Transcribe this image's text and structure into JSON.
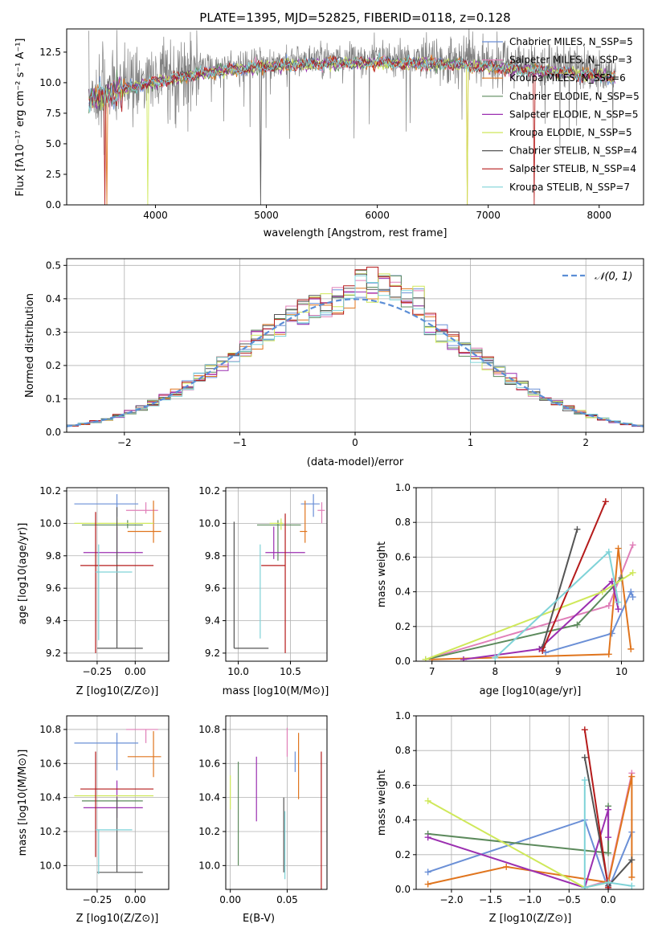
{
  "colors": {
    "chabrier_miles": "#6a8fd6",
    "salpeter_miles": "#e07fb8",
    "kroupa_miles": "#e0751e",
    "chabrier_elodie": "#5c8a5c",
    "salpeter_elodie": "#9b2fb0",
    "kroupa_elodie": "#cfe85a",
    "chabrier_stelib": "#555555",
    "salpeter_stelib": "#b51b1b",
    "kroupa_stelib": "#7fd3d8",
    "spectrum": "#808080",
    "normal_curve": "#5b8ed6",
    "grid": "#b0b0b0"
  },
  "chart_data": [
    {
      "type": "line",
      "title": "PLATE=1395, MJD=52825, FIBERID=0118, z=0.128",
      "xlabel": "wavelength [Angstrom, rest frame]",
      "ylabel": "Flux [fλ10⁻¹⁷ erg cm⁻² s⁻¹ A⁻¹]",
      "xlim": [
        3200,
        8400
      ],
      "ylim": [
        0,
        14.4
      ],
      "xticks": [
        "4000",
        "5000",
        "6000",
        "7000",
        "8000"
      ],
      "yticks": [
        "0.0",
        "2.5",
        "5.0",
        "7.5",
        "10.0",
        "12.5"
      ],
      "grid": false,
      "legend_position": "right",
      "legend": [
        "Chabrier MILES, N_SSP=5",
        "Salpeter MILES, N_SSP=3",
        "Kroupa MILES, N_SSP=6",
        "Chabrier ELODIE, N_SSP=5",
        "Salpeter ELODIE, N_SSP=5",
        "Kroupa ELODIE, N_SSP=5",
        "Chabrier STELIB, N_SSP=4",
        "Salpeter STELIB, N_SSP=4",
        "Kroupa STELIB, N_SSP=7"
      ],
      "spectrum_trend": {
        "x": [
          3400,
          3550,
          3700,
          3900,
          4100,
          4300,
          4500,
          4800,
          5200,
          5600,
          6000,
          6400,
          6800,
          7200,
          7600,
          8000,
          8150
        ],
        "y": [
          8.8,
          9.4,
          9.8,
          10.2,
          10.6,
          10.9,
          11.2,
          11.5,
          11.8,
          11.9,
          12.0,
          11.9,
          11.8,
          11.5,
          11.2,
          10.9,
          10.7
        ]
      }
    },
    {
      "type": "histogram",
      "xlabel": "(data-model)/error",
      "ylabel": "Normed distribution",
      "xlim": [
        -2.5,
        2.5
      ],
      "ylim": [
        0,
        0.52
      ],
      "xticks": [
        "−2",
        "−1",
        "0",
        "1",
        "2"
      ],
      "yticks": [
        "0.0",
        "0.1",
        "0.2",
        "0.3",
        "0.4",
        "0.5"
      ],
      "grid": true,
      "legend_position": "top-right",
      "legend": [
        "𝒩(0, 1)"
      ],
      "bin_width": 0.1
    },
    {
      "type": "scatter",
      "xlabel": "Z [log10(Z/Z⊙)]",
      "ylabel": "age  [log10(age/yr)]",
      "xlim": [
        -0.45,
        0.22
      ],
      "ylim": [
        9.15,
        10.22
      ],
      "xticks": [
        "−0.25",
        "0.00"
      ],
      "yticks": [
        "9.2",
        "9.4",
        "9.6",
        "9.8",
        "10.0",
        "10.2"
      ],
      "points": [
        {
          "model": "chabrier_miles",
          "x": -0.12,
          "y": 10.12,
          "xerr": [
            0.28,
            0.14
          ],
          "yerr": [
            0.08,
            0.06
          ]
        },
        {
          "model": "salpeter_miles",
          "x": 0.07,
          "y": 10.08,
          "xerr": [
            0.13,
            0.08
          ],
          "yerr": [
            0.02,
            0.05
          ]
        },
        {
          "model": "kroupa_miles",
          "x": 0.12,
          "y": 9.95,
          "xerr": [
            0.17,
            0.05
          ],
          "yerr": [
            0.07,
            0.19
          ]
        },
        {
          "model": "chabrier_elodie",
          "x": -0.05,
          "y": 9.99,
          "xerr": [
            0.3,
            0.1
          ],
          "yerr": [
            0.02,
            0.03
          ]
        },
        {
          "model": "salpeter_elodie",
          "x": -0.12,
          "y": 9.82,
          "xerr": [
            0.22,
            0.17
          ],
          "yerr": [
            0.04,
            0.16
          ]
        },
        {
          "model": "kroupa_elodie",
          "x": -0.12,
          "y": 10.0,
          "xerr": [
            0.28,
            0.24
          ],
          "yerr": [
            0.04,
            0.03
          ]
        },
        {
          "model": "chabrier_stelib",
          "x": -0.12,
          "y": 9.23,
          "xerr": [
            0.13,
            0.17
          ],
          "yerr": [
            0.0,
            0.87
          ]
        },
        {
          "model": "salpeter_stelib",
          "x": -0.26,
          "y": 9.74,
          "xerr": [
            0.1,
            0.38
          ],
          "yerr": [
            0.54,
            0.33
          ]
        },
        {
          "model": "kroupa_stelib",
          "x": -0.24,
          "y": 9.7,
          "xerr": [
            0.02,
            0.22
          ],
          "yerr": [
            0.42,
            0.17
          ]
        }
      ]
    },
    {
      "type": "scatter",
      "xlabel": "mass [log10(M/M⊙)]",
      "xlim": [
        9.88,
        10.85
      ],
      "ylim": [
        9.15,
        10.22
      ],
      "xticks": [
        "10.0",
        "10.5"
      ],
      "yticks": [
        "9.2",
        "9.4",
        "9.6",
        "9.8",
        "10.0",
        "10.2"
      ],
      "points": [
        {
          "model": "chabrier_miles",
          "x": 10.72,
          "y": 10.12,
          "xerr": [
            0.12,
            0.06
          ],
          "yerr": [
            0.08,
            0.06
          ]
        },
        {
          "model": "salpeter_miles",
          "x": 10.8,
          "y": 10.08,
          "xerr": [
            0.04,
            0.03
          ],
          "yerr": [
            0.08,
            0.05
          ]
        },
        {
          "model": "kroupa_miles",
          "x": 10.64,
          "y": 9.95,
          "xerr": [
            0.05,
            0.02
          ],
          "yerr": [
            0.07,
            0.19
          ]
        },
        {
          "model": "chabrier_elodie",
          "x": 10.38,
          "y": 9.99,
          "xerr": [
            0.2,
            0.22
          ],
          "yerr": [
            0.22,
            0.03
          ]
        },
        {
          "model": "salpeter_elodie",
          "x": 10.34,
          "y": 9.82,
          "xerr": [
            0.08,
            0.3
          ],
          "yerr": [
            0.04,
            0.16
          ]
        },
        {
          "model": "kroupa_elodie",
          "x": 10.41,
          "y": 10.0,
          "xerr": [
            0.11,
            0.02
          ],
          "yerr": [
            0.04,
            0.03
          ]
        },
        {
          "model": "chabrier_stelib",
          "x": 9.96,
          "y": 9.23,
          "xerr": [
            0.0,
            0.33
          ],
          "yerr": [
            0.0,
            0.78
          ]
        },
        {
          "model": "salpeter_stelib",
          "x": 10.45,
          "y": 9.74,
          "xerr": [
            0.23,
            0.0
          ],
          "yerr": [
            0.54,
            0.32
          ]
        },
        {
          "model": "kroupa_stelib",
          "x": 10.21,
          "y": 9.7,
          "xerr": [
            0.0,
            0.0
          ],
          "yerr": [
            0.41,
            0.17
          ]
        }
      ]
    },
    {
      "type": "line",
      "xlabel": "age  [log10(age/yr)]",
      "ylabel": "mass weight",
      "xlim": [
        6.75,
        10.35
      ],
      "ylim": [
        0,
        1
      ],
      "xticks": [
        "7",
        "8",
        "9",
        "10"
      ],
      "yticks": [
        "0.0",
        "0.2",
        "0.4",
        "0.6",
        "0.8",
        "1.0"
      ],
      "grid": true,
      "series": [
        {
          "model": "chabrier_miles",
          "x": [
            8.8,
            9.85,
            10.15,
            10.18
          ],
          "y": [
            0.05,
            0.16,
            0.4,
            0.37
          ]
        },
        {
          "model": "salpeter_miles",
          "x": [
            6.9,
            9.8,
            10.18
          ],
          "y": [
            0.01,
            0.32,
            0.67
          ]
        },
        {
          "model": "kroupa_miles",
          "x": [
            7.0,
            9.8,
            9.95,
            10.15
          ],
          "y": [
            0.01,
            0.04,
            0.65,
            0.07
          ]
        },
        {
          "model": "chabrier_elodie",
          "x": [
            6.9,
            9.3,
            10.0
          ],
          "y": [
            0.01,
            0.21,
            0.48
          ]
        },
        {
          "model": "salpeter_elodie",
          "x": [
            7.5,
            8.7,
            9.85,
            9.95
          ],
          "y": [
            0.01,
            0.07,
            0.46,
            0.3
          ]
        },
        {
          "model": "kroupa_elodie",
          "x": [
            6.9,
            9.7,
            10.18
          ],
          "y": [
            0.01,
            0.4,
            0.51
          ]
        },
        {
          "model": "chabrier_stelib",
          "x": [
            8.75,
            9.3
          ],
          "y": [
            0.08,
            0.76
          ]
        },
        {
          "model": "salpeter_stelib",
          "x": [
            8.75,
            9.75
          ],
          "y": [
            0.06,
            0.92
          ]
        },
        {
          "model": "kroupa_stelib",
          "x": [
            8.0,
            9.8,
            9.95
          ],
          "y": [
            0.02,
            0.63,
            0.34
          ]
        }
      ]
    },
    {
      "type": "scatter",
      "xlabel": "Z [log10(Z/Z⊙)]",
      "ylabel": "mass [log10(M/M⊙)]",
      "xlim": [
        -0.45,
        0.22
      ],
      "ylim": [
        9.86,
        10.88
      ],
      "xticks": [
        "−0.25",
        "0.00"
      ],
      "yticks": [
        "10.0",
        "10.2",
        "10.4",
        "10.6",
        "10.8"
      ],
      "points": [
        {
          "model": "chabrier_miles",
          "x": -0.12,
          "y": 10.72,
          "xerr": [
            0.28,
            0.14
          ],
          "yerr": [
            0.16,
            0.06
          ]
        },
        {
          "model": "salpeter_miles",
          "x": 0.07,
          "y": 10.8,
          "xerr": [
            0.13,
            0.08
          ],
          "yerr": [
            0.08,
            0.0
          ]
        },
        {
          "model": "kroupa_miles",
          "x": 0.12,
          "y": 10.64,
          "xerr": [
            0.17,
            0.05
          ],
          "yerr": [
            0.12,
            0.15
          ]
        },
        {
          "model": "chabrier_elodie",
          "x": -0.05,
          "y": 10.38,
          "xerr": [
            0.3,
            0.1
          ],
          "yerr": [
            0.0,
            0.0
          ]
        },
        {
          "model": "salpeter_elodie",
          "x": -0.12,
          "y": 10.34,
          "xerr": [
            0.22,
            0.17
          ],
          "yerr": [
            0.06,
            0.16
          ]
        },
        {
          "model": "kroupa_elodie",
          "x": -0.12,
          "y": 10.41,
          "xerr": [
            0.28,
            0.24
          ],
          "yerr": [
            0.0,
            0.0
          ]
        },
        {
          "model": "chabrier_stelib",
          "x": -0.12,
          "y": 9.96,
          "xerr": [
            0.13,
            0.17
          ],
          "yerr": [
            0.0,
            0.44
          ]
        },
        {
          "model": "salpeter_stelib",
          "x": -0.26,
          "y": 10.45,
          "xerr": [
            0.1,
            0.38
          ],
          "yerr": [
            0.4,
            0.22
          ]
        },
        {
          "model": "kroupa_stelib",
          "x": -0.24,
          "y": 10.21,
          "xerr": [
            0.02,
            0.22
          ],
          "yerr": [
            0.26,
            0.0
          ]
        }
      ]
    },
    {
      "type": "scatter",
      "xlabel": "E(B-V)",
      "xlim": [
        -0.004,
        0.085
      ],
      "ylim": [
        9.86,
        10.88
      ],
      "xticks": [
        "0.00",
        "0.05"
      ],
      "yticks": [
        "10.0",
        "10.2",
        "10.4",
        "10.6",
        "10.8"
      ],
      "points": [
        {
          "model": "chabrier_miles",
          "x": 0.057,
          "y": 10.62,
          "yerr": [
            0.07,
            0.05
          ]
        },
        {
          "model": "salpeter_miles",
          "x": 0.05,
          "y": 10.71,
          "yerr": [
            0.07,
            0.1
          ]
        },
        {
          "model": "kroupa_miles",
          "x": 0.06,
          "y": 10.63,
          "yerr": [
            0.24,
            0.15
          ]
        },
        {
          "model": "chabrier_elodie",
          "x": 0.007,
          "y": 10.3,
          "yerr": [
            0.3,
            0.31
          ]
        },
        {
          "model": "salpeter_elodie",
          "x": 0.023,
          "y": 10.45,
          "yerr": [
            0.19,
            0.19
          ]
        },
        {
          "model": "kroupa_elodie",
          "x": 0.0,
          "y": 10.38,
          "yerr": [
            0.05,
            0.15
          ]
        },
        {
          "model": "chabrier_stelib",
          "x": 0.047,
          "y": 10.18,
          "yerr": [
            0.22,
            0.22
          ]
        },
        {
          "model": "salpeter_stelib",
          "x": 0.08,
          "y": 10.25,
          "yerr": [
            0.42,
            0.42
          ]
        },
        {
          "model": "kroupa_stelib",
          "x": 0.048,
          "y": 10.12,
          "yerr": [
            0.2,
            0.2
          ]
        }
      ]
    },
    {
      "type": "line",
      "xlabel": "Z [log10(Z/Z⊙)]",
      "ylabel": "mass weight",
      "xlim": [
        -2.45,
        0.45
      ],
      "ylim": [
        0,
        1
      ],
      "xticks": [
        "−2.0",
        "−1.5",
        "−1.0",
        "−0.5",
        "0.0"
      ],
      "yticks": [
        "0.0",
        "0.2",
        "0.4",
        "0.6",
        "0.8",
        "1.0"
      ],
      "grid": true,
      "series": [
        {
          "model": "chabrier_miles",
          "x": [
            -2.3,
            -0.3,
            0.0,
            0.3
          ],
          "y": [
            0.1,
            0.4,
            0.0,
            0.33
          ]
        },
        {
          "model": "salpeter_miles",
          "x": [
            -0.3,
            0.0,
            0.3
          ],
          "y": [
            0.01,
            0.05,
            0.67
          ]
        },
        {
          "model": "kroupa_miles",
          "x": [
            -2.3,
            -1.3,
            0.0,
            0.3,
            0.3
          ],
          "y": [
            0.03,
            0.13,
            0.04,
            0.65,
            0.07
          ]
        },
        {
          "model": "chabrier_elodie",
          "x": [
            -2.3,
            0.0,
            0.0
          ],
          "y": [
            0.32,
            0.21,
            0.48
          ]
        },
        {
          "model": "salpeter_elodie",
          "x": [
            -2.3,
            -0.3,
            0.0,
            0.0
          ],
          "y": [
            0.3,
            0.01,
            0.46,
            0.3
          ]
        },
        {
          "model": "kroupa_elodie",
          "x": [
            -2.3,
            -0.3,
            0.0
          ],
          "y": [
            0.51,
            0.01,
            0.04
          ]
        },
        {
          "model": "chabrier_stelib",
          "x": [
            -0.3,
            0.0,
            0.3
          ],
          "y": [
            0.76,
            0.02,
            0.17
          ]
        },
        {
          "model": "salpeter_stelib",
          "x": [
            -0.3,
            0.0
          ],
          "y": [
            0.92,
            0.01
          ]
        },
        {
          "model": "kroupa_stelib",
          "x": [
            -0.3,
            -0.3,
            0.0,
            0.3
          ],
          "y": [
            0.63,
            0.01,
            0.04,
            0.02
          ]
        }
      ]
    }
  ]
}
